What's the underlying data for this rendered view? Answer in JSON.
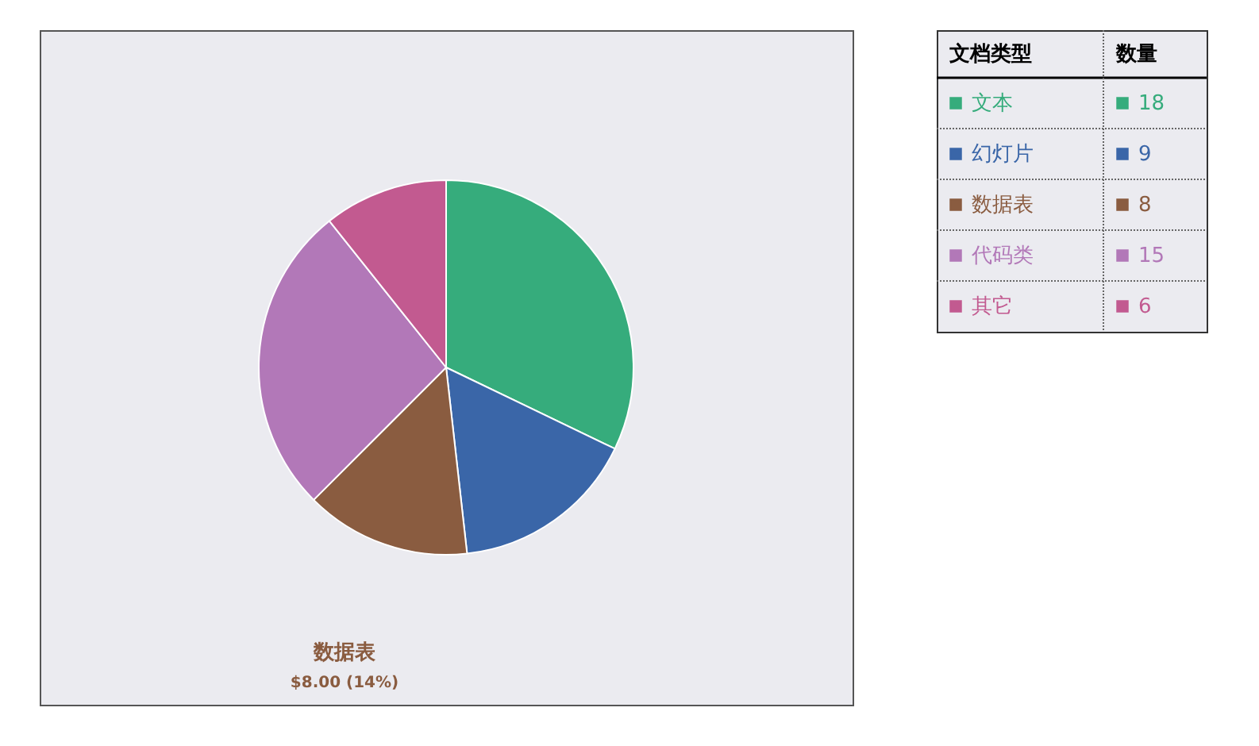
{
  "chart_data": {
    "type": "pie",
    "categories": [
      "文本",
      "幻灯片",
      "数据表",
      "代码类",
      "其它"
    ],
    "values": [
      18,
      9,
      8,
      15,
      6
    ],
    "colors": [
      "#36ac7c",
      "#3a66a8",
      "#8a5c40",
      "#b278b8",
      "#c25a90"
    ],
    "legend_title": "文档类型",
    "data_labels": true,
    "legend": "right",
    "annotations": [
      "数量",
      "数据表",
      "$8.00 (14%)"
    ]
  }
}
